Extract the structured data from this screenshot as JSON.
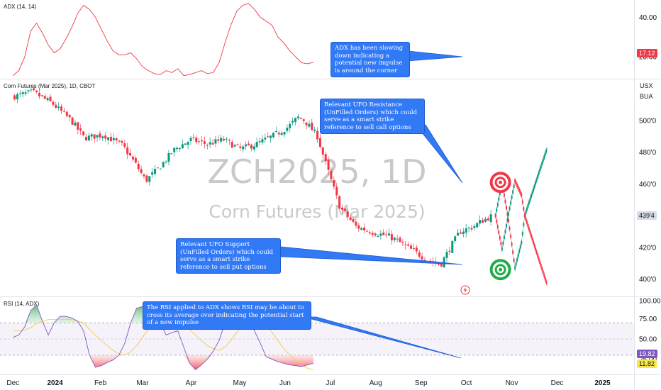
{
  "chart_data": [
    {
      "type": "line",
      "title": "ADX (14, 14)",
      "ylim": [
        10,
        48
      ],
      "yticks": [
        20,
        40
      ],
      "ytick_labels": [
        "20.00",
        "40.00"
      ],
      "last_value_label": "17.12",
      "line_color": "#f23645",
      "x": [
        0,
        4,
        8,
        12,
        16,
        20,
        24,
        28,
        32,
        36,
        40,
        44,
        48,
        52,
        56,
        60,
        64,
        68,
        72,
        76,
        80,
        84,
        88,
        92,
        96,
        100,
        104,
        108,
        112,
        116,
        120,
        124,
        128,
        132,
        136,
        140,
        144,
        148,
        152,
        156,
        160,
        164,
        168,
        172,
        176,
        180,
        184,
        188,
        192,
        196,
        200,
        204
      ],
      "values": [
        10.5,
        13,
        20,
        33,
        37,
        32,
        26,
        22,
        24,
        29,
        35,
        42,
        46,
        44,
        40,
        34,
        28,
        23,
        21,
        21,
        22,
        19,
        15,
        13,
        11.5,
        11,
        13,
        12,
        14,
        10.5,
        11,
        12,
        13,
        11.5,
        12,
        17,
        27,
        36,
        43,
        46,
        47,
        44,
        40,
        38,
        36,
        30,
        27,
        23,
        20,
        17,
        16.5,
        17.12
      ],
      "annotation": "ADX has been slowing down indicating a potential new impulse is around the corner"
    },
    {
      "type": "candlestick",
      "title": "Corn Futures (Mar 2025), 1D, CBOT",
      "watermark_symbol": "ZCH2025, 1D",
      "watermark_name": "Corn Futures (Mar 2025)",
      "unit_labels": [
        "USX",
        "BUA"
      ],
      "ylim": [
        390,
        525
      ],
      "yticks": [
        400,
        420,
        440,
        460,
        480,
        500
      ],
      "ytick_labels": [
        "400'0",
        "420'0",
        "440'0",
        "460'0",
        "480'0",
        "500'0"
      ],
      "last_price_label": "439'4",
      "up_color": "#089981",
      "down_color": "#f23645",
      "close_anchors": [
        [
          0,
          515
        ],
        [
          6,
          518
        ],
        [
          12,
          511
        ],
        [
          18,
          500
        ],
        [
          22,
          489
        ],
        [
          28,
          491
        ],
        [
          34,
          484
        ],
        [
          38,
          472
        ],
        [
          41,
          462
        ],
        [
          45,
          470
        ],
        [
          50,
          482
        ],
        [
          55,
          488
        ],
        [
          60,
          485
        ],
        [
          65,
          488
        ],
        [
          70,
          482
        ],
        [
          75,
          485
        ],
        [
          80,
          490
        ],
        [
          85,
          496
        ],
        [
          88,
          502
        ],
        [
          90,
          500
        ],
        [
          94,
          490
        ],
        [
          97,
          470
        ],
        [
          101,
          445
        ],
        [
          106,
          433
        ],
        [
          112,
          429
        ],
        [
          116,
          427
        ],
        [
          118,
          425
        ],
        [
          121,
          421
        ],
        [
          125,
          416
        ],
        [
          128,
          412
        ],
        [
          132,
          409
        ],
        [
          135,
          420
        ],
        [
          138,
          430
        ],
        [
          142,
          433
        ],
        [
          145,
          437
        ],
        [
          148,
          440
        ]
      ],
      "projection_up": [
        [
          149,
          440
        ],
        [
          151,
          461
        ],
        [
          153,
          437
        ],
        [
          155,
          407
        ],
        [
          157,
          423
        ],
        [
          158,
          440
        ],
        [
          165,
          483
        ]
      ],
      "projection_down": [
        [
          149,
          440
        ],
        [
          151,
          419
        ],
        [
          153,
          441
        ],
        [
          155,
          462
        ],
        [
          157,
          453
        ],
        [
          158,
          440
        ],
        [
          165,
          396
        ]
      ],
      "resistance_level": 461,
      "support_level": 406,
      "annotation_resistance": "Relevant UFO Resistance (UnFilled Orders) which could serve as a smart strike reference to sell call options",
      "annotation_support": "Relevant UFO Support (UnFilled Orders) which could serve as a smart strike reference to sell put options"
    },
    {
      "type": "line",
      "title": "RSI (14, ADX)",
      "ylim": [
        8,
        100
      ],
      "yticks": [
        75,
        50,
        25
      ],
      "ytick_labels": [
        "75.00",
        "50.00",
        "25.00"
      ],
      "top_tick_label": "100.00",
      "band": [
        30,
        70
      ],
      "last_rsi_label": "19.82",
      "last_ma_label": "11.82",
      "rsi_color": "#7e57c2",
      "ma_color": "#f7c948",
      "x": [
        0,
        4,
        8,
        12,
        16,
        20,
        24,
        28,
        32,
        36,
        40,
        44,
        48,
        52,
        56,
        60,
        64,
        68,
        72,
        76,
        80,
        84,
        88,
        92,
        96,
        100,
        104,
        108,
        112,
        116,
        120,
        124,
        128,
        132,
        136,
        140,
        144,
        148,
        152,
        156,
        160,
        164,
        168,
        172,
        176,
        180,
        184,
        188,
        192,
        196,
        200,
        204
      ],
      "rsi": [
        52,
        55,
        65,
        85,
        92,
        72,
        55,
        70,
        78,
        78,
        76,
        72,
        60,
        30,
        15,
        17,
        21,
        24,
        30,
        45,
        70,
        88,
        90,
        88,
        82,
        70,
        55,
        58,
        60,
        40,
        20,
        12,
        18,
        25,
        35,
        48,
        70,
        85,
        95,
        92,
        85,
        60,
        45,
        28,
        25,
        22,
        20,
        18,
        17,
        16,
        18,
        19.82
      ],
      "ma": [
        60,
        60,
        61,
        64,
        69,
        72,
        74,
        74,
        74,
        74,
        74,
        72,
        70,
        62,
        55,
        48,
        42,
        36,
        32,
        30,
        34,
        42,
        52,
        62,
        70,
        75,
        76,
        74,
        72,
        68,
        62,
        55,
        48,
        42,
        38,
        36,
        40,
        48,
        58,
        68,
        76,
        80,
        76,
        68,
        58,
        48,
        38,
        30,
        24,
        18,
        14,
        11.82
      ],
      "annotation": "The RSI applied to ADX shows RSI may be about to cross its average over indicating the potential start of a new impulse"
    }
  ],
  "time_axis": {
    "labels": [
      "Dec",
      "2024",
      "Feb",
      "Mar",
      "Apr",
      "May",
      "Jun",
      "Jul",
      "Aug",
      "Sep",
      "Oct",
      "Nov",
      "Dec",
      "2025"
    ],
    "positions": [
      0,
      13,
      27,
      40,
      55,
      70,
      84,
      98,
      112,
      126,
      140,
      154,
      168,
      182
    ],
    "bold_labels": [
      "2024",
      "2025"
    ],
    "xlim": [
      -4,
      190
    ]
  }
}
